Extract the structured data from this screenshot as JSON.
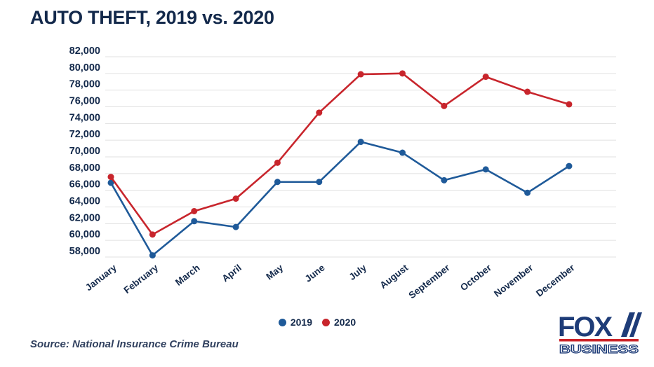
{
  "page": {
    "title": "AUTO THEFT, 2019 vs. 2020",
    "source": "Source: National Insurance Crime Bureau"
  },
  "legend": {
    "items": [
      {
        "label": "2019",
        "color": "#1f5a99"
      },
      {
        "label": "2020",
        "color": "#c8252c"
      }
    ]
  },
  "logo": {
    "line1": "FOX",
    "line2": "BUSINESS"
  },
  "colors": {
    "navy_text": "#13294b",
    "blue_series": "#1f5a99",
    "red_series": "#c8252c",
    "gridline": "#e0e0e0",
    "logo_navy": "#1e3c78",
    "logo_red": "#cc2328"
  },
  "chart_data": {
    "type": "line",
    "title": "AUTO THEFT, 2019 vs. 2020",
    "categories": [
      "January",
      "February",
      "March",
      "April",
      "May",
      "June",
      "July",
      "August",
      "September",
      "October",
      "November",
      "December"
    ],
    "series": [
      {
        "name": "2019",
        "color": "#1f5a99",
        "values": [
          66900,
          58200,
          62300,
          61600,
          67000,
          67000,
          71800,
          70500,
          67200,
          68500,
          65700,
          68900
        ]
      },
      {
        "name": "2020",
        "color": "#c8252c",
        "values": [
          67600,
          60700,
          63500,
          65000,
          69300,
          75300,
          79900,
          80000,
          76100,
          79600,
          77800,
          76300
        ]
      }
    ],
    "xlabel": "",
    "ylabel": "",
    "ylim": [
      58000,
      82000
    ],
    "ytick_step": 2000,
    "y_tick_labels": [
      "82,000",
      "80,000",
      "78,000",
      "76,000",
      "74,000",
      "72,000",
      "70,000",
      "68,000",
      "66,000",
      "64,000",
      "62,000",
      "60,000",
      "58,000"
    ],
    "grid": true,
    "legend_position": "bottom"
  }
}
